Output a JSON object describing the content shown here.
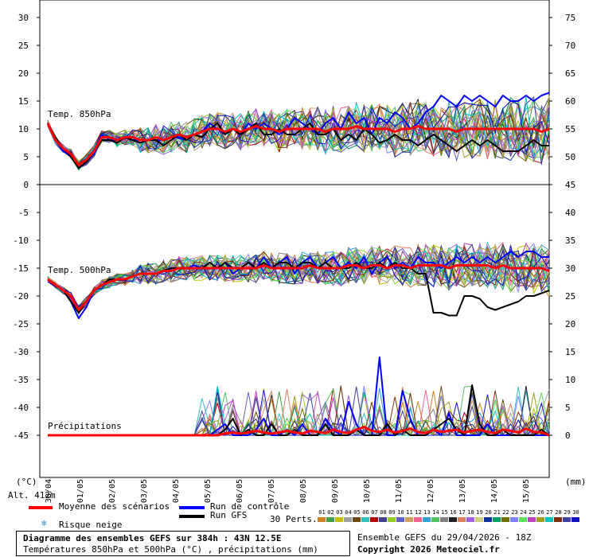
{
  "chart_data": {
    "type": "line",
    "title": "Diagramme des ensembles GEFS sur 384h : 43N 12.5E",
    "subtitle": "Températures 850hPa et 500hPa (°C) , précipitations (mm)",
    "left_axis_ticks": [
      "30",
      "25",
      "20",
      "15",
      "10",
      "5",
      "0",
      "-5",
      "-10",
      "-15",
      "-20",
      "-25",
      "-30",
      "-35",
      "-40",
      "-45"
    ],
    "right_axis_ticks": [
      "75",
      "70",
      "65",
      "60",
      "55",
      "50",
      "45",
      "40",
      "35",
      "30",
      "25",
      "20",
      "15",
      "10",
      "5",
      "0"
    ],
    "left_unit": "(°C)",
    "right_unit": "(mm)",
    "altitude": "Alt. 412m",
    "x_labels": [
      "30/04",
      "01/05",
      "02/05",
      "03/05",
      "04/05",
      "05/05",
      "06/05",
      "07/05",
      "08/05",
      "09/05",
      "10/05",
      "11/05",
      "12/05",
      "13/05",
      "14/05",
      "15/05"
    ],
    "panel_labels": {
      "t850": "Temp. 850hPa",
      "t500": "Temp. 500hPa",
      "precip": "Précipitations"
    },
    "series": [
      {
        "name": "Moyenne des scénarios",
        "panel": "t850",
        "values": [
          11,
          8,
          6.5,
          5.5,
          3.5,
          4.5,
          6,
          8.5,
          8.5,
          8,
          8.5,
          8.5,
          8,
          8,
          8.5,
          8,
          8.5,
          9,
          8.5,
          9,
          9.5,
          10,
          10,
          9.5,
          10,
          9.5,
          10,
          10.5,
          10,
          10,
          9.5,
          10,
          10,
          10,
          10,
          10,
          9.5,
          10,
          10,
          10,
          10.5,
          10,
          10,
          10,
          10,
          9.5,
          10,
          10,
          10.5,
          10,
          10,
          10,
          10,
          9.5,
          10,
          10,
          10,
          10,
          10,
          10,
          10,
          10,
          10,
          10,
          9.5,
          10
        ]
      },
      {
        "name": "Run de contrôle",
        "panel": "t850",
        "values": [
          11,
          8,
          6,
          5,
          3,
          4,
          5.5,
          9,
          8,
          8,
          8.5,
          8,
          8,
          8,
          8,
          8,
          8.5,
          8.5,
          8,
          9,
          9.5,
          11,
          10,
          9,
          10,
          9,
          11,
          10,
          11,
          10,
          9,
          10,
          12,
          11,
          10,
          9,
          11,
          12,
          10,
          13,
          11,
          12,
          9,
          12,
          11,
          13,
          12,
          10,
          11,
          13,
          14,
          16,
          15,
          14,
          16,
          15,
          16,
          15,
          14,
          16,
          15,
          15,
          16,
          15,
          16,
          16.5
        ]
      },
      {
        "name": "Run GFS",
        "panel": "t850",
        "values": [
          11,
          8.5,
          6.5,
          5,
          3,
          4,
          6,
          8,
          8,
          7.5,
          8.5,
          8,
          7.5,
          8,
          8,
          7,
          8,
          9,
          8,
          9,
          8.5,
          10,
          11,
          9,
          10,
          9,
          10,
          11,
          9,
          9,
          10,
          9,
          9,
          10,
          11,
          9,
          9,
          10,
          8,
          9,
          8,
          10,
          9,
          7.5,
          8,
          9,
          8,
          8,
          7,
          8,
          9,
          8,
          7,
          6,
          7,
          8,
          7,
          8,
          7,
          6,
          6,
          6,
          7,
          8,
          7,
          7
        ]
      },
      {
        "name": "Moyenne des scénarios",
        "panel": "t500",
        "values": [
          -17,
          -18,
          -19,
          -20,
          -22.5,
          -21,
          -19,
          -18,
          -17.5,
          -17,
          -17,
          -16.5,
          -16,
          -16,
          -16,
          -15.5,
          -15.5,
          -15,
          -15,
          -15,
          -15,
          -15,
          -15,
          -15,
          -15,
          -15,
          -15,
          -15,
          -14.5,
          -15,
          -15,
          -15,
          -15,
          -15,
          -14.5,
          -15,
          -15,
          -15,
          -15,
          -14.5,
          -14.5,
          -15,
          -14.5,
          -14.5,
          -15,
          -14.5,
          -14.5,
          -15,
          -14.5,
          -14.5,
          -14.5,
          -14.5,
          -15,
          -14.5,
          -14.5,
          -14.5,
          -14.5,
          -14.5,
          -15,
          -14.5,
          -15,
          -15,
          -15,
          -15,
          -15,
          -15.5
        ]
      },
      {
        "name": "Run de contrôle",
        "panel": "t500",
        "values": [
          -17,
          -18,
          -19,
          -21,
          -24,
          -22,
          -19,
          -18,
          -17.5,
          -17,
          -17,
          -16.5,
          -16,
          -16,
          -16,
          -15.5,
          -15,
          -15,
          -15,
          -14.5,
          -15,
          -14,
          -15,
          -14,
          -16,
          -15,
          -14,
          -15,
          -13,
          -15,
          -14,
          -13,
          -16,
          -14,
          -13,
          -15,
          -14,
          -13,
          -15,
          -14,
          -15,
          -13,
          -16,
          -14,
          -13,
          -15,
          -14,
          -15,
          -13,
          -14,
          -14,
          -15,
          -14,
          -13,
          -14,
          -13,
          -14,
          -13,
          -14,
          -13,
          -12,
          -13,
          -12,
          -12,
          -13,
          -13
        ]
      },
      {
        "name": "Run GFS",
        "panel": "t500",
        "values": [
          -17,
          -18,
          -19,
          -21,
          -23,
          -21,
          -19,
          -18,
          -17,
          -17,
          -17,
          -16.5,
          -16,
          -16,
          -16,
          -15.5,
          -15,
          -15,
          -15,
          -15,
          -15,
          -14,
          -15,
          -14,
          -15,
          -15,
          -14,
          -15,
          -14,
          -15,
          -14,
          -14,
          -15,
          -14,
          -14,
          -15,
          -14,
          -15,
          -15,
          -15,
          -14,
          -15,
          -15,
          -14,
          -15,
          -14,
          -15,
          -15,
          -16,
          -16,
          -23,
          -23,
          -23.5,
          -23.5,
          -20,
          -20,
          -20.5,
          -22,
          -22.5,
          -22,
          -21.5,
          -21,
          -20,
          -20,
          -19.5,
          -19
        ]
      },
      {
        "name": "Moyenne des scénarios",
        "panel": "precip",
        "values": [
          0,
          0,
          0,
          0,
          0,
          0,
          0,
          0,
          0,
          0,
          0,
          0,
          0,
          0,
          0,
          0,
          0,
          0,
          0,
          0,
          0,
          0,
          0,
          0.3,
          0.5,
          0.3,
          0.5,
          0.8,
          0.5,
          0.3,
          0.5,
          0.8,
          0.5,
          0.3,
          0.8,
          0.6,
          0.4,
          1,
          0.6,
          0.4,
          1,
          1.5,
          0.8,
          0.6,
          1,
          0.5,
          0.8,
          1.2,
          0.6,
          0.4,
          1,
          0.6,
          0.8,
          1,
          0.5,
          0.8,
          1,
          0.6,
          0.4,
          1,
          0.8,
          0.5,
          1.2,
          0.6,
          0.5,
          0
        ]
      },
      {
        "name": "Run de contrôle",
        "panel": "precip",
        "values": [
          0,
          0,
          0,
          0,
          0,
          0,
          0,
          0,
          0,
          0,
          0,
          0,
          0,
          0,
          0,
          0,
          0,
          0,
          0,
          0,
          0,
          0,
          1,
          2,
          0,
          0,
          0,
          1,
          3,
          0,
          0,
          1,
          0,
          2,
          0,
          0,
          3,
          1,
          0,
          6,
          2,
          0,
          0,
          14,
          0,
          0,
          8,
          3,
          0,
          0,
          1,
          0,
          4,
          0,
          0,
          0,
          0,
          2,
          0,
          0,
          0,
          0,
          0,
          0,
          0,
          0
        ]
      },
      {
        "name": "Run GFS",
        "panel": "precip",
        "values": [
          0,
          0,
          0,
          0,
          0,
          0,
          0,
          0,
          0,
          0,
          0,
          0,
          0,
          0,
          0,
          0,
          0,
          0,
          0,
          0,
          0,
          0,
          0,
          1,
          3,
          0,
          1,
          0,
          0,
          2,
          0,
          0,
          1,
          0,
          0,
          0,
          2,
          0,
          0,
          0,
          1,
          0,
          0,
          0,
          2,
          0,
          1,
          0,
          0,
          0,
          1,
          2,
          3,
          1,
          0,
          9,
          2,
          0,
          0,
          1,
          0,
          0,
          0,
          0,
          1,
          0
        ]
      }
    ],
    "legend": {
      "mean": "Moyenne des scénarios",
      "control": "Run de contrôle",
      "gfs": "Run GFS",
      "snow": "Risque neige",
      "perts": "30 Perts."
    },
    "pert_numbers": [
      "01",
      "02",
      "03",
      "04",
      "05",
      "06",
      "07",
      "08",
      "09",
      "10",
      "11",
      "12",
      "13",
      "14",
      "15",
      "16",
      "17",
      "18",
      "19",
      "20",
      "21",
      "22",
      "23",
      "24",
      "25",
      "26",
      "27",
      "28",
      "29",
      "30"
    ],
    "pert_colors": [
      "#d08020",
      "#40a040",
      "#c0c000",
      "#a0a0a0",
      "#6a4a10",
      "#30c0c0",
      "#b00000",
      "#404090",
      "#90d020",
      "#6060c0",
      "#d0a060",
      "#f06090",
      "#30a0d0",
      "#50c060",
      "#808080",
      "#202020",
      "#e08060",
      "#a060e0",
      "#d0d080",
      "#1030a0",
      "#00a060",
      "#707000",
      "#8080ff",
      "#60e060",
      "#c040c0",
      "#a0a020",
      "#00c0c0",
      "#803010",
      "#4040a0",
      "#1010c0"
    ],
    "colors": {
      "mean": "#ff0000",
      "control": "#0000ff",
      "gfs": "#000000"
    }
  },
  "footer": {
    "title": "Diagramme des ensembles GEFS sur 384h : 43N 12.5E",
    "subtitle": "Températures 850hPa et 500hPa (°C) , précipitations (mm)",
    "run_info": "Ensemble GEFS du 29/04/2026 - 18Z",
    "copyright": "Copyright 2026 Meteociel.fr"
  }
}
